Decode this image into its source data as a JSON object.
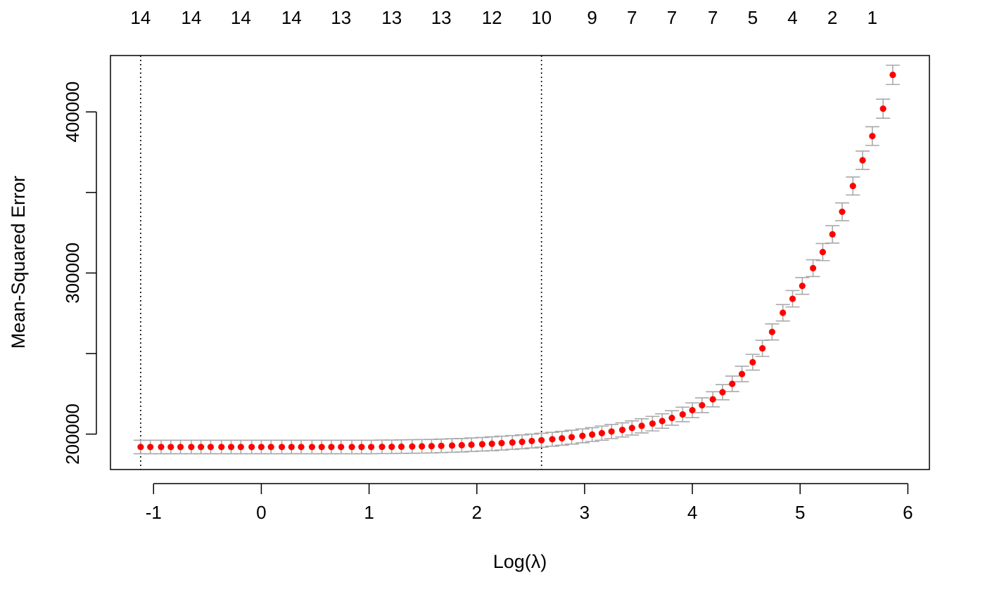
{
  "chart_data": {
    "type": "scatter",
    "xlabel": "Log(λ)",
    "ylabel": "Mean-Squared Error",
    "xlim": [
      -1.4,
      6.2
    ],
    "ylim": [
      178000,
      435000
    ],
    "x_ticks": [
      -1,
      0,
      1,
      2,
      3,
      4,
      5,
      6
    ],
    "x_tick_labels": [
      "-1",
      "0",
      "1",
      "2",
      "3",
      "4",
      "5",
      "6"
    ],
    "y_ticks": [
      200000,
      250000,
      300000,
      350000,
      400000
    ],
    "y_tick_labels": [
      "200000",
      "",
      "300000",
      "",
      "400000"
    ],
    "top_axis": {
      "positions": [
        -1.12,
        -0.65,
        -0.19,
        0.28,
        0.74,
        1.21,
        1.67,
        2.14,
        2.6,
        3.07,
        3.44,
        3.81,
        4.19,
        4.56,
        4.93,
        5.3,
        5.67
      ],
      "labels": [
        "14",
        "14",
        "14",
        "14",
        "13",
        "13",
        "13",
        "12",
        "10",
        "9",
        "7",
        "7",
        "7",
        "5",
        "4",
        "2",
        "1"
      ]
    },
    "vlines": [
      -1.12,
      2.6
    ],
    "point_color": "#ff0000",
    "errorbar_color": "#a9a9a9",
    "x": [
      -1.12,
      -1.03,
      -0.93,
      -0.84,
      -0.75,
      -0.65,
      -0.56,
      -0.47,
      -0.37,
      -0.28,
      -0.19,
      -0.09,
      0.0,
      0.09,
      0.19,
      0.28,
      0.37,
      0.47,
      0.56,
      0.65,
      0.74,
      0.84,
      0.93,
      1.02,
      1.12,
      1.21,
      1.3,
      1.4,
      1.49,
      1.58,
      1.67,
      1.77,
      1.86,
      1.95,
      2.05,
      2.14,
      2.23,
      2.33,
      2.42,
      2.51,
      2.6,
      2.7,
      2.79,
      2.88,
      2.98,
      3.07,
      3.16,
      3.25,
      3.35,
      3.44,
      3.53,
      3.63,
      3.72,
      3.81,
      3.91,
      4.0,
      4.09,
      4.19,
      4.28,
      4.37,
      4.46,
      4.56,
      4.65,
      4.74,
      4.84,
      4.93,
      5.02,
      5.12,
      5.21,
      5.3,
      5.39,
      5.49,
      5.58,
      5.67,
      5.77,
      5.86
    ],
    "mse": [
      192000,
      192000,
      192000,
      192000,
      192000,
      192000,
      192000,
      192000,
      192000,
      192000,
      192000,
      192000,
      192000,
      192000,
      192000,
      192000,
      192000,
      192000,
      192000,
      192000,
      192000,
      192000,
      192000,
      192000,
      192100,
      192100,
      192200,
      192300,
      192400,
      192500,
      192700,
      192900,
      193100,
      193400,
      193700,
      194000,
      194400,
      194800,
      195200,
      195700,
      196200,
      196800,
      197400,
      198100,
      198900,
      199700,
      200600,
      201600,
      202600,
      203800,
      205100,
      206500,
      208100,
      210000,
      212200,
      214800,
      217900,
      221600,
      226000,
      231200,
      237300,
      244600,
      253200,
      263400,
      275300,
      284000,
      292000,
      303000,
      313000,
      324000,
      338000,
      354000,
      370000,
      385000,
      402000,
      423000
    ],
    "err": [
      4200,
      4200,
      4200,
      4200,
      4200,
      4200,
      4200,
      4200,
      4200,
      4200,
      4200,
      4200,
      4200,
      4200,
      4200,
      4200,
      4200,
      4200,
      4200,
      4200,
      4200,
      4200,
      4200,
      4200,
      4200,
      4200,
      4200,
      4200,
      4200,
      4200,
      4200,
      4200,
      4200,
      4200,
      4200,
      4300,
      4300,
      4300,
      4300,
      4300,
      4300,
      4300,
      4300,
      4300,
      4300,
      4300,
      4400,
      4400,
      4400,
      4400,
      4400,
      4500,
      4500,
      4500,
      4500,
      4600,
      4600,
      4700,
      4700,
      4800,
      4800,
      4900,
      5000,
      5000,
      5100,
      5100,
      5200,
      5200,
      5300,
      5400,
      5500,
      5600,
      5700,
      5800,
      5900,
      6000
    ]
  }
}
